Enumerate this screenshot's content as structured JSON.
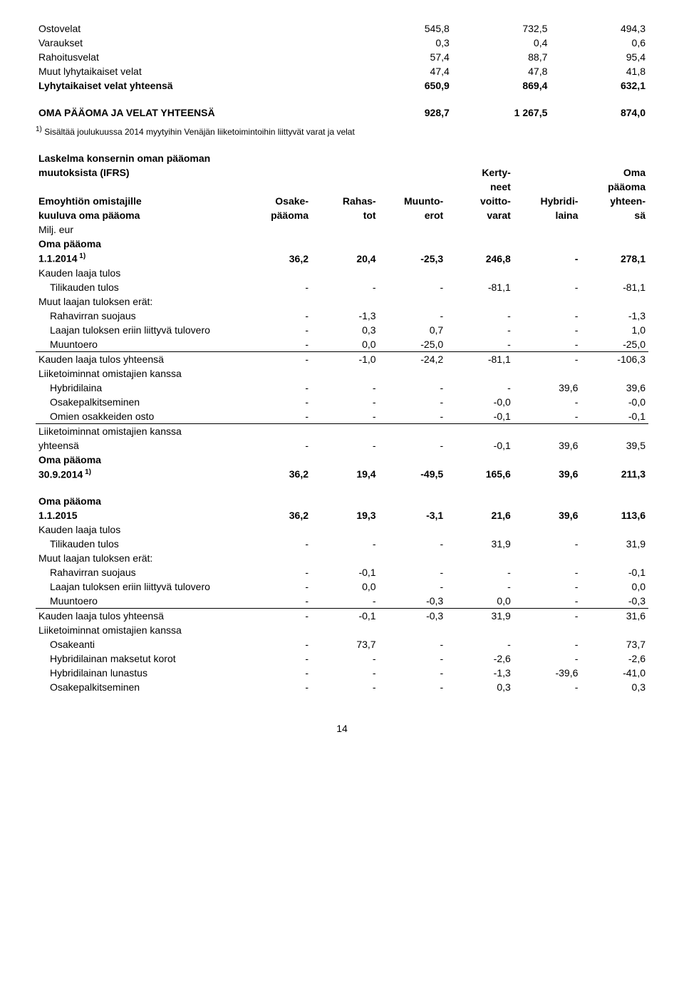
{
  "balance": {
    "rows": [
      {
        "label": "Ostovelat",
        "c1": "545,8",
        "c2": "732,5",
        "c3": "494,3",
        "bold": false
      },
      {
        "label": "Varaukset",
        "c1": "0,3",
        "c2": "0,4",
        "c3": "0,6",
        "bold": false
      },
      {
        "label": "Rahoitusvelat",
        "c1": "57,4",
        "c2": "88,7",
        "c3": "95,4",
        "bold": false
      },
      {
        "label": "Muut lyhytaikaiset velat",
        "c1": "47,4",
        "c2": "47,8",
        "c3": "41,8",
        "bold": false
      },
      {
        "label": "Lyhytaikaiset velat yhteensä",
        "c1": "650,9",
        "c2": "869,4",
        "c3": "632,1",
        "bold": true
      }
    ],
    "total": {
      "label": "OMA PÄÄOMA JA VELAT YHTEENSÄ",
      "c1": "928,7",
      "c2": "1 267,5",
      "c3": "874,0"
    },
    "footnote": "Sisältää joulukuussa 2014 myytyihin Venäjän liiketoimintoihin liittyvät varat ja velat",
    "footnote_mark": "1)"
  },
  "equity": {
    "title_l1": "Laskelma konsernin oman pääoman",
    "title_l2": "muutoksista (IFRS)",
    "row1_l1": "Emoyhtiön omistajille",
    "row1_l2": "kuuluva oma pääoma",
    "unit": "Milj. eur",
    "headers": {
      "c1_l1": "Osake-",
      "c1_l2": "pääoma",
      "c2_l1": "Rahas-",
      "c2_l2": "tot",
      "c3_l1": "Muunto-",
      "c3_l2": "erot",
      "c4_l0": "Kerty-",
      "c4_l1": "neet",
      "c4_l2": "voitto-",
      "c4_l3": "varat",
      "c5_l1": "Hybridi-",
      "c5_l2": "laina",
      "c6_l0": "Oma",
      "c6_l1": "pääoma",
      "c6_l2": "yhteen-",
      "c6_l3": "sä"
    },
    "section1": {
      "open_label": "Oma pääoma",
      "open_date": "1.1.2014",
      "open_sup": "1)",
      "open": [
        "36,2",
        "20,4",
        "-25,3",
        "246,8",
        "-",
        "278,1"
      ],
      "kl_label": "Kauden laaja tulos",
      "tk": {
        "label": "Tilikauden tulos",
        "v": [
          "-",
          "-",
          "-",
          "-81,1",
          "-",
          "-81,1"
        ]
      },
      "mlt_label": "Muut laajan tuloksen erät:",
      "rs": {
        "label": "Rahavirran suojaus",
        "v": [
          "-",
          "-1,3",
          "-",
          "-",
          "-",
          "-1,3"
        ]
      },
      "tv": {
        "label": "Laajan tuloksen eriin liittyvä tulovero",
        "v": [
          "-",
          "0,3",
          "0,7",
          "-",
          "-",
          "1,0"
        ]
      },
      "me": {
        "label": "Muuntoero",
        "v": [
          "-",
          "0,0",
          "-25,0",
          "-",
          "-",
          "-25,0"
        ]
      },
      "kly": {
        "label": "Kauden laaja tulos yhteensä",
        "v": [
          "-",
          "-1,0",
          "-24,2",
          "-81,1",
          "-",
          "-106,3"
        ]
      },
      "lok_label": "Liiketoiminnat omistajien kanssa",
      "hl": {
        "label": "Hybridilaina",
        "v": [
          "-",
          "-",
          "-",
          "-",
          "39,6",
          "39,6"
        ]
      },
      "op": {
        "label": "Osakepalkitseminen",
        "v": [
          "-",
          "-",
          "-",
          "-0,0",
          "-",
          "-0,0"
        ]
      },
      "oo": {
        "label": "Omien osakkeiden osto",
        "v": [
          "-",
          "-",
          "-",
          "-0,1",
          "-",
          "-0,1"
        ]
      },
      "loky_l1": "Liiketoiminnat omistajien kanssa",
      "loky_l2": "yhteensä",
      "loky": [
        "-",
        "-",
        "-",
        "-0,1",
        "39,6",
        "39,5"
      ],
      "close_label": "Oma pääoma",
      "close_date": "30.9.2014",
      "close_sup": "1)",
      "close": [
        "36,2",
        "19,4",
        "-49,5",
        "165,6",
        "39,6",
        "211,3"
      ]
    },
    "section2": {
      "open_label": "Oma pääoma",
      "open_date": "1.1.2015",
      "open": [
        "36,2",
        "19,3",
        "-3,1",
        "21,6",
        "39,6",
        "113,6"
      ],
      "kl_label": "Kauden laaja tulos",
      "tk": {
        "label": "Tilikauden tulos",
        "v": [
          "-",
          "-",
          "-",
          "31,9",
          "-",
          "31,9"
        ]
      },
      "mlt_label": "Muut laajan tuloksen erät:",
      "rs": {
        "label": "Rahavirran suojaus",
        "v": [
          "-",
          "-0,1",
          "-",
          "-",
          "-",
          "-0,1"
        ]
      },
      "tv": {
        "label": "Laajan tuloksen eriin liittyvä tulovero",
        "v": [
          "-",
          "0,0",
          "-",
          "-",
          "-",
          "0,0"
        ]
      },
      "me": {
        "label": "Muuntoero",
        "v": [
          "-",
          "-",
          "-0,3",
          "0,0",
          "-",
          "-0,3"
        ]
      },
      "kly": {
        "label": "Kauden laaja tulos yhteensä",
        "v": [
          "-",
          "-0,1",
          "-0,3",
          "31,9",
          "-",
          "31,6"
        ]
      },
      "lok_label": "Liiketoiminnat omistajien kanssa",
      "oa": {
        "label": "Osakeanti",
        "v": [
          "-",
          "73,7",
          "-",
          "-",
          "-",
          "73,7"
        ]
      },
      "hmk": {
        "label": "Hybridilainan maksetut korot",
        "v": [
          "-",
          "-",
          "-",
          "-2,6",
          "-",
          "-2,6"
        ]
      },
      "hll": {
        "label": "Hybridilainan lunastus",
        "v": [
          "-",
          "-",
          "-",
          "-1,3",
          "-39,6",
          "-41,0"
        ]
      },
      "op": {
        "label": "Osakepalkitseminen",
        "v": [
          "-",
          "-",
          "-",
          "0,3",
          "-",
          "0,3"
        ]
      }
    }
  },
  "page_number": "14"
}
